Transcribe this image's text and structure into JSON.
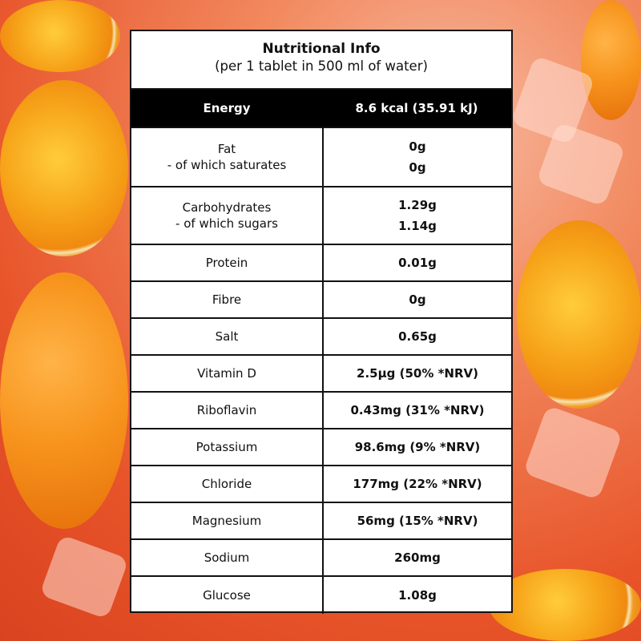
{
  "header": {
    "title": "Nutritional Info",
    "subtitle": "(per 1 tablet in 500 ml of water)"
  },
  "energy": {
    "label": "Energy",
    "value": "8.6 kcal (35.91 kJ)"
  },
  "fat": {
    "label": "Fat",
    "sublabel": "- of which saturates",
    "value": "0g",
    "subvalue": "0g"
  },
  "carbs": {
    "label": "Carbohydrates",
    "sublabel": "- of which sugars",
    "value": "1.29g",
    "subvalue": "1.14g"
  },
  "rows": [
    {
      "label": "Protein",
      "value": "0.01g"
    },
    {
      "label": "Fibre",
      "value": "0g"
    },
    {
      "label": "Salt",
      "value": "0.65g"
    },
    {
      "label": "Vitamin D",
      "value": "2.5µg (50% *NRV)"
    },
    {
      "label": "Riboflavin",
      "value": "0.43mg (31% *NRV)"
    },
    {
      "label": "Potassium",
      "value": "98.6mg (9% *NRV)"
    },
    {
      "label": "Chloride",
      "value": "177mg (22% *NRV)"
    },
    {
      "label": "Magnesium",
      "value": "56mg (15% *NRV)"
    },
    {
      "label": "Sodium",
      "value": "260mg"
    },
    {
      "label": "Glucose",
      "value": "1.08g"
    }
  ]
}
